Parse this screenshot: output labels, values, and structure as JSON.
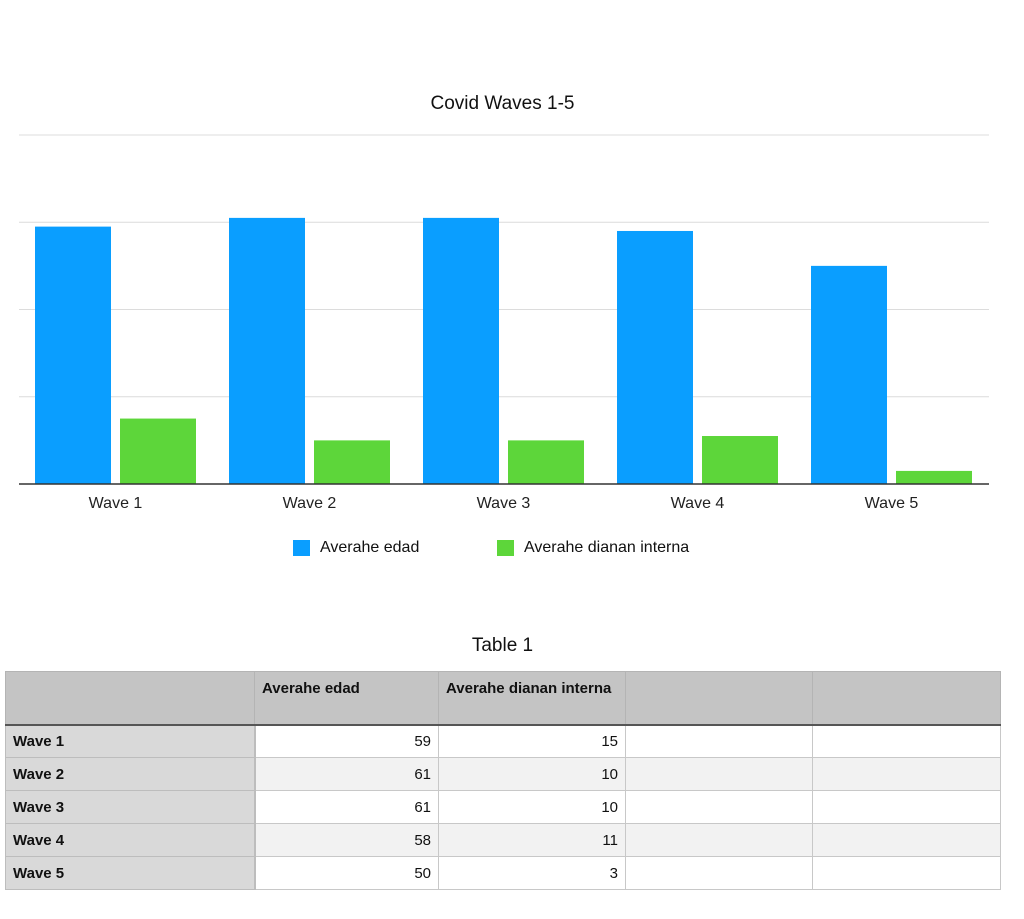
{
  "chart_data": {
    "type": "bar",
    "title": "Covid Waves 1-5",
    "categories": [
      "Wave 1",
      "Wave 2",
      "Wave 3",
      "Wave 4",
      "Wave 5"
    ],
    "series": [
      {
        "name": "Averahe edad",
        "values": [
          59,
          61,
          61,
          58,
          50
        ],
        "color": "#0a9eff"
      },
      {
        "name": "Averahe dianan interna",
        "values": [
          15,
          10,
          10,
          11,
          3
        ],
        "color": "#5dd63a"
      }
    ],
    "ylim": [
      0,
      80
    ],
    "grid": true,
    "y_tick_labels_shown": false,
    "legend_position": "bottom"
  },
  "table": {
    "title": "Table 1",
    "headers": [
      "",
      "Averahe edad",
      "Averahe dianan interna",
      "",
      ""
    ],
    "rows": [
      [
        "Wave 1",
        "59",
        "15",
        "",
        ""
      ],
      [
        "Wave 2",
        "61",
        "10",
        "",
        ""
      ],
      [
        "Wave 3",
        "61",
        "10",
        "",
        ""
      ],
      [
        "Wave 4",
        "58",
        "11",
        "",
        ""
      ],
      [
        "Wave 5",
        "50",
        "3",
        "",
        ""
      ]
    ]
  }
}
